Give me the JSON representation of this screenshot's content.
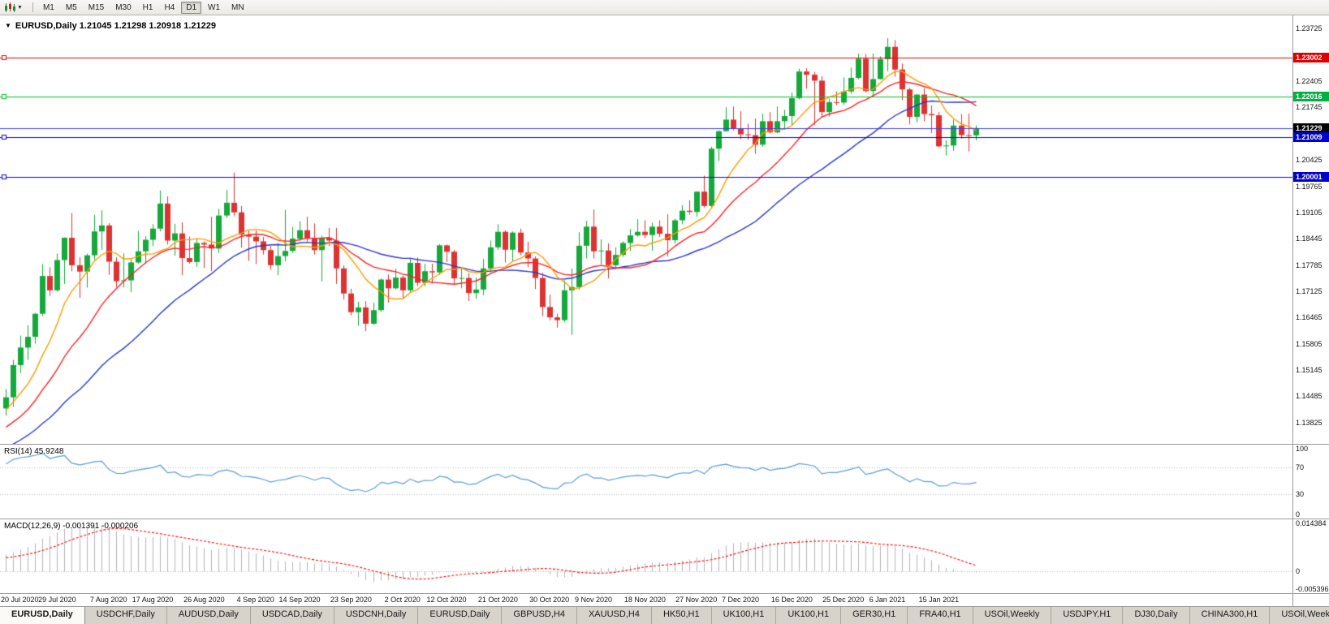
{
  "toolbar": {
    "timeframes": [
      "M1",
      "M5",
      "M15",
      "M30",
      "H1",
      "H4",
      "D1",
      "W1",
      "MN"
    ],
    "active_timeframe": "D1"
  },
  "chart": {
    "title": "EURUSD,Daily 1.21045 1.21298 1.20918 1.21229"
  },
  "rsi": {
    "label": "RSI(14) 45.9248",
    "color": "#5b9bd5",
    "ylim": [
      0,
      100
    ],
    "level_lines": [
      70,
      30
    ],
    "axis_labels": [
      {
        "v": 100,
        "t": "100"
      },
      {
        "v": 70,
        "t": "70"
      },
      {
        "v": 30,
        "t": "30"
      },
      {
        "v": 0,
        "t": "0"
      }
    ]
  },
  "macd": {
    "label": "MACD(12,26,9) -0.001391 -0.000206",
    "hist_color": "#b4b4b4",
    "signal_color": "#ff0000",
    "ylim": [
      -0.005396,
      0.014384
    ],
    "axis_labels": [
      {
        "v": 0.014384,
        "t": "0.014384"
      },
      {
        "v": 0,
        "t": "0"
      },
      {
        "v": -0.005396,
        "t": "-0.005396"
      }
    ]
  },
  "tabs": {
    "active_index": 0,
    "items": [
      "EURUSD,Daily",
      "USDCHF,Daily",
      "AUDUSD,Daily",
      "USDCAD,Daily",
      "USDCNH,Daily",
      "EURUSD,Daily",
      "GBPUSD,H4",
      "XAUUSD,H4",
      "HK50,H1",
      "UK100,H1",
      "UK100,H1",
      "GER30,H1",
      "FRA40,H1",
      "USOil,Weekly",
      "USDJPY,H1",
      "DJ30,Daily",
      "CHINA300,H1",
      "USOil,Weekly"
    ]
  },
  "chart_data": {
    "type": "candlestick",
    "symbol": "EURUSD",
    "timeframe": "Daily",
    "ohlc_last": {
      "open": "1.21045",
      "high": "1.21298",
      "low": "1.20918",
      "close": "1.21229"
    },
    "ylim": [
      1.1329,
      1.2406
    ],
    "up_color": "#14a93a",
    "down_color": "#dd3232",
    "price_ticks": [
      "1.23725",
      "1.22405",
      "1.21745",
      "1.20425",
      "1.19765",
      "1.19105",
      "1.18445",
      "1.17785",
      "1.17125",
      "1.16465",
      "1.15805",
      "1.15145",
      "1.14485",
      "1.13825"
    ],
    "price_badges": [
      {
        "text": "1.23002",
        "bg": "#dd0000"
      },
      {
        "text": "1.22016",
        "bg": "#00b043"
      },
      {
        "text": "1.21229",
        "bg": "#000000"
      },
      {
        "text": "1.21009",
        "bg": "#0000cc"
      },
      {
        "text": "1.20001",
        "bg": "#0000cc"
      }
    ],
    "hlines": [
      {
        "price": 1.23002,
        "color": "#ee0000",
        "marker": true
      },
      {
        "price": 1.22016,
        "color": "#00c020",
        "marker": true
      },
      {
        "price": 1.21229,
        "color": "#3c3cff",
        "marker": false
      },
      {
        "price": 1.21009,
        "color": "#0000ee",
        "marker": true
      },
      {
        "price": 1.20001,
        "color": "#0000ee",
        "marker": true
      }
    ],
    "ma_series": [
      {
        "period": 30,
        "color": "#2b35cf"
      },
      {
        "period": 16,
        "color": "#ff2121"
      },
      {
        "period": 8,
        "color": "#ff9a00"
      }
    ],
    "x_labels": [
      [
        "20 Jul 2020",
        0
      ],
      [
        "29 Jul 2020",
        7
      ],
      [
        "7 Aug 2020",
        14
      ],
      [
        "17 Aug 2020",
        20
      ],
      [
        "26 Aug 2020",
        27
      ],
      [
        "4 Sep 2020",
        34
      ],
      [
        "14 Sep 2020",
        40
      ],
      [
        "23 Sep 2020",
        47
      ],
      [
        "2 Oct 2020",
        54
      ],
      [
        "12 Oct 2020",
        60
      ],
      [
        "21 Oct 2020",
        67
      ],
      [
        "30 Oct 2020",
        74
      ],
      [
        "9 Nov 2020",
        80
      ],
      [
        "18 Nov 2020",
        87
      ],
      [
        "27 Nov 2020",
        94
      ],
      [
        "7 Dec 2020",
        100
      ],
      [
        "16 Dec 2020",
        107
      ],
      [
        "25 Dec 2020",
        114
      ],
      [
        "6 Jan 2021",
        120
      ],
      [
        "15 Jan 2021",
        127
      ]
    ],
    "seed_closes": [
      1.1195,
      1.1208,
      1.1237,
      1.1268,
      1.1252,
      1.123,
      1.1245,
      1.127,
      1.1258,
      1.1243,
      1.1264,
      1.1261,
      1.1282,
      1.1257,
      1.124,
      1.1264,
      1.1273,
      1.126,
      1.1245,
      1.1268,
      1.1286,
      1.1314,
      1.1344,
      1.1319,
      1.13,
      1.1313,
      1.1337,
      1.1352,
      1.134,
      1.1364,
      1.1393,
      1.1414,
      1.1406,
      1.1422,
      1.1434,
      1.1437
    ],
    "candles": [
      [
        1.1418,
        1.1467,
        1.14,
        1.1446
      ],
      [
        1.1446,
        1.154,
        1.1422,
        1.1527
      ],
      [
        1.1527,
        1.1601,
        1.1507,
        1.1571
      ],
      [
        1.1571,
        1.1627,
        1.154,
        1.1598
      ],
      [
        1.1598,
        1.1658,
        1.1581,
        1.1656
      ],
      [
        1.1656,
        1.1781,
        1.165,
        1.1751
      ],
      [
        1.1751,
        1.1773,
        1.1701,
        1.1715
      ],
      [
        1.1715,
        1.1807,
        1.1712,
        1.1791
      ],
      [
        1.1791,
        1.1848,
        1.1731,
        1.1847
      ],
      [
        1.1847,
        1.1909,
        1.1763,
        1.1778
      ],
      [
        1.1778,
        1.1798,
        1.1696,
        1.1762
      ],
      [
        1.1762,
        1.1807,
        1.1722,
        1.1803
      ],
      [
        1.1803,
        1.1905,
        1.1791,
        1.1863
      ],
      [
        1.1863,
        1.1916,
        1.1817,
        1.1878
      ],
      [
        1.1878,
        1.1884,
        1.1754,
        1.1787
      ],
      [
        1.1787,
        1.1798,
        1.1723,
        1.1738
      ],
      [
        1.1738,
        1.1808,
        1.1722,
        1.174
      ],
      [
        1.174,
        1.1793,
        1.171,
        1.1785
      ],
      [
        1.1785,
        1.1864,
        1.1782,
        1.1813
      ],
      [
        1.1813,
        1.1851,
        1.1782,
        1.1842
      ],
      [
        1.1842,
        1.1881,
        1.1826,
        1.187
      ],
      [
        1.187,
        1.1966,
        1.1863,
        1.1933
      ],
      [
        1.1933,
        1.1951,
        1.183,
        1.184
      ],
      [
        1.184,
        1.1882,
        1.1802,
        1.1858
      ],
      [
        1.1858,
        1.1886,
        1.1753,
        1.1796
      ],
      [
        1.1796,
        1.185,
        1.1782,
        1.1786
      ],
      [
        1.1786,
        1.1843,
        1.1774,
        1.1834
      ],
      [
        1.1834,
        1.1838,
        1.1771,
        1.183
      ],
      [
        1.183,
        1.19,
        1.1763,
        1.182
      ],
      [
        1.182,
        1.192,
        1.1809,
        1.1903
      ],
      [
        1.1903,
        1.1967,
        1.1898,
        1.1935
      ],
      [
        1.1935,
        1.2011,
        1.1901,
        1.1911
      ],
      [
        1.1911,
        1.1927,
        1.1822,
        1.1855
      ],
      [
        1.1855,
        1.1865,
        1.1789,
        1.185
      ],
      [
        1.185,
        1.1865,
        1.1781,
        1.1838
      ],
      [
        1.1838,
        1.1849,
        1.1805,
        1.1816
      ],
      [
        1.1816,
        1.1827,
        1.1766,
        1.1778
      ],
      [
        1.1778,
        1.1834,
        1.1753,
        1.1801
      ],
      [
        1.1801,
        1.1917,
        1.1788,
        1.1814
      ],
      [
        1.1814,
        1.1874,
        1.1809,
        1.1845
      ],
      [
        1.1845,
        1.1888,
        1.1839,
        1.1866
      ],
      [
        1.1866,
        1.19,
        1.1838,
        1.1846
      ],
      [
        1.1846,
        1.1883,
        1.1805,
        1.1816
      ],
      [
        1.1816,
        1.1852,
        1.1737,
        1.1847
      ],
      [
        1.1847,
        1.1872,
        1.1826,
        1.184
      ],
      [
        1.184,
        1.1872,
        1.1731,
        1.177
      ],
      [
        1.177,
        1.1778,
        1.1692,
        1.1707
      ],
      [
        1.1707,
        1.1719,
        1.1652,
        1.166
      ],
      [
        1.166,
        1.1686,
        1.1626,
        1.1672
      ],
      [
        1.1672,
        1.1688,
        1.1612,
        1.1631
      ],
      [
        1.1631,
        1.1684,
        1.1628,
        1.1665
      ],
      [
        1.1665,
        1.1745,
        1.1661,
        1.1742
      ],
      [
        1.1742,
        1.1755,
        1.1684,
        1.172
      ],
      [
        1.172,
        1.1769,
        1.1717,
        1.1747
      ],
      [
        1.1747,
        1.1752,
        1.1695,
        1.1715
      ],
      [
        1.1715,
        1.1797,
        1.1708,
        1.1784
      ],
      [
        1.1784,
        1.1798,
        1.1725,
        1.1734
      ],
      [
        1.1734,
        1.1781,
        1.1725,
        1.1763
      ],
      [
        1.1763,
        1.1782,
        1.1733,
        1.176
      ],
      [
        1.176,
        1.1831,
        1.1754,
        1.1828
      ],
      [
        1.1828,
        1.183,
        1.1786,
        1.1812
      ],
      [
        1.1812,
        1.1817,
        1.1731,
        1.1745
      ],
      [
        1.1745,
        1.1772,
        1.172,
        1.1746
      ],
      [
        1.1746,
        1.1758,
        1.1688,
        1.1708
      ],
      [
        1.1708,
        1.1747,
        1.1694,
        1.1717
      ],
      [
        1.1717,
        1.1794,
        1.1703,
        1.177
      ],
      [
        1.177,
        1.184,
        1.176,
        1.1823
      ],
      [
        1.1823,
        1.1881,
        1.1817,
        1.1862
      ],
      [
        1.1862,
        1.1866,
        1.1785,
        1.1817
      ],
      [
        1.1817,
        1.1863,
        1.1786,
        1.186
      ],
      [
        1.186,
        1.187,
        1.1803,
        1.181
      ],
      [
        1.181,
        1.1837,
        1.1773,
        1.1795
      ],
      [
        1.1795,
        1.18,
        1.1718,
        1.1746
      ],
      [
        1.1746,
        1.1759,
        1.165,
        1.1673
      ],
      [
        1.1673,
        1.1704,
        1.164,
        1.1647
      ],
      [
        1.1647,
        1.1656,
        1.1621,
        1.164
      ],
      [
        1.164,
        1.174,
        1.1634,
        1.1715
      ],
      [
        1.1715,
        1.177,
        1.1603,
        1.1723
      ],
      [
        1.1723,
        1.1861,
        1.1717,
        1.1827
      ],
      [
        1.1827,
        1.189,
        1.1795,
        1.1875
      ],
      [
        1.1875,
        1.1918,
        1.1795,
        1.1813
      ],
      [
        1.1813,
        1.1843,
        1.178,
        1.1815
      ],
      [
        1.1815,
        1.1833,
        1.1745,
        1.1778
      ],
      [
        1.1778,
        1.1823,
        1.1771,
        1.1804
      ],
      [
        1.1804,
        1.1838,
        1.1799,
        1.1834
      ],
      [
        1.1834,
        1.1869,
        1.1814,
        1.1853
      ],
      [
        1.1853,
        1.1894,
        1.185,
        1.1862
      ],
      [
        1.1862,
        1.1891,
        1.1846,
        1.1854
      ],
      [
        1.1854,
        1.1885,
        1.1815,
        1.1875
      ],
      [
        1.1875,
        1.1891,
        1.1849,
        1.1857
      ],
      [
        1.1857,
        1.1906,
        1.18,
        1.1841
      ],
      [
        1.1841,
        1.1895,
        1.1833,
        1.1891
      ],
      [
        1.1891,
        1.1929,
        1.1881,
        1.1915
      ],
      [
        1.1915,
        1.1941,
        1.1905,
        1.1912
      ],
      [
        1.1912,
        1.1964,
        1.19,
        1.1963
      ],
      [
        1.1963,
        1.2003,
        1.1923,
        1.1927
      ],
      [
        1.1927,
        1.2076,
        1.1922,
        1.2071
      ],
      [
        1.2071,
        1.2117,
        1.204,
        1.2115
      ],
      [
        1.2115,
        1.2175,
        1.2114,
        1.2144
      ],
      [
        1.2144,
        1.2177,
        1.2117,
        1.2121
      ],
      [
        1.2121,
        1.2165,
        1.2095,
        1.2107
      ],
      [
        1.2107,
        1.2134,
        1.2094,
        1.2105
      ],
      [
        1.2105,
        1.2147,
        1.2058,
        1.2081
      ],
      [
        1.2081,
        1.2159,
        1.2076,
        1.214
      ],
      [
        1.214,
        1.2163,
        1.2109,
        1.2112
      ],
      [
        1.2112,
        1.2177,
        1.211,
        1.214
      ],
      [
        1.214,
        1.2169,
        1.2122,
        1.2153
      ],
      [
        1.2153,
        1.2212,
        1.213,
        1.2198
      ],
      [
        1.2198,
        1.2272,
        1.2195,
        1.2265
      ],
      [
        1.2265,
        1.2273,
        1.2222,
        1.2257
      ],
      [
        1.2257,
        1.2264,
        1.213,
        1.2242
      ],
      [
        1.2242,
        1.2253,
        1.2151,
        1.2163
      ],
      [
        1.2163,
        1.2197,
        1.2152,
        1.2188
      ],
      [
        1.2188,
        1.2215,
        1.218,
        1.2187
      ],
      [
        1.2187,
        1.225,
        1.2181,
        1.2215
      ],
      [
        1.2215,
        1.2275,
        1.2209,
        1.2249
      ],
      [
        1.2249,
        1.231,
        1.2245,
        1.2297
      ],
      [
        1.2297,
        1.2309,
        1.2212,
        1.2216
      ],
      [
        1.2216,
        1.231,
        1.22,
        1.2246
      ],
      [
        1.2246,
        1.2303,
        1.2245,
        1.2296
      ],
      [
        1.2296,
        1.2349,
        1.2266,
        1.2327
      ],
      [
        1.2327,
        1.2344,
        1.2252,
        1.227
      ],
      [
        1.227,
        1.2285,
        1.2193,
        1.222
      ],
      [
        1.222,
        1.2224,
        1.2132,
        1.2151
      ],
      [
        1.2151,
        1.2208,
        1.2137,
        1.2207
      ],
      [
        1.2207,
        1.2223,
        1.214,
        1.2158
      ],
      [
        1.2158,
        1.218,
        1.211,
        1.2155
      ],
      [
        1.2155,
        1.2163,
        1.2075,
        1.2077
      ],
      [
        1.2077,
        1.2092,
        1.2054,
        1.2079
      ],
      [
        1.2079,
        1.2144,
        1.2066,
        1.2129
      ],
      [
        1.2129,
        1.2158,
        1.2096,
        1.2105
      ],
      [
        1.2105,
        1.2159,
        1.2064,
        1.2104
      ],
      [
        1.21045,
        1.21298,
        1.20918,
        1.21229
      ]
    ]
  }
}
